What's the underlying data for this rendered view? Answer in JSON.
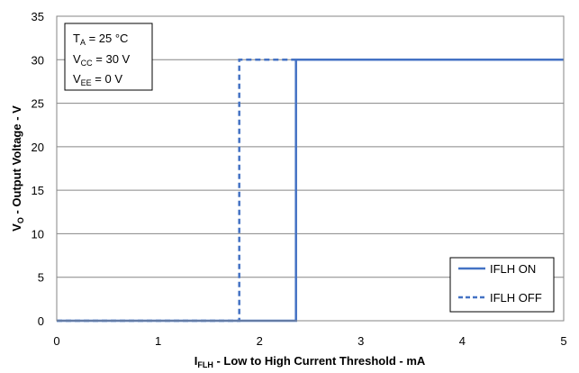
{
  "chart_data": {
    "type": "line",
    "xlabel": {
      "main": "I",
      "sub": "FLH",
      "rest": " - Low to High Current Threshold - mA"
    },
    "ylabel": {
      "main": "V",
      "sub": "O",
      "rest": " - Output Voltage - V"
    },
    "xlim": [
      0,
      5
    ],
    "ylim": [
      0,
      35
    ],
    "xticks": [
      0,
      1,
      2,
      3,
      4,
      5
    ],
    "yticks": [
      0,
      5,
      10,
      15,
      20,
      25,
      30,
      35
    ],
    "grid": "horizontal",
    "legend_position": "bottom-right",
    "conditions": [
      {
        "main": "T",
        "sub": "A",
        "rest": " = 25 °C"
      },
      {
        "main": "V",
        "sub": "CC",
        "rest": " = 30 V"
      },
      {
        "main": "V",
        "sub": "EE",
        "rest": " = 0 V"
      }
    ],
    "series": [
      {
        "name": "IFLH ON",
        "style": "solid",
        "color": "#4472C4",
        "points": [
          [
            0,
            0
          ],
          [
            2.36,
            0
          ],
          [
            2.36,
            30
          ],
          [
            5,
            30
          ]
        ]
      },
      {
        "name": "IFLH OFF",
        "style": "dashed",
        "color": "#4472C4",
        "points": [
          [
            0,
            0
          ],
          [
            1.8,
            0
          ],
          [
            1.8,
            30
          ],
          [
            5,
            30
          ]
        ]
      }
    ]
  }
}
